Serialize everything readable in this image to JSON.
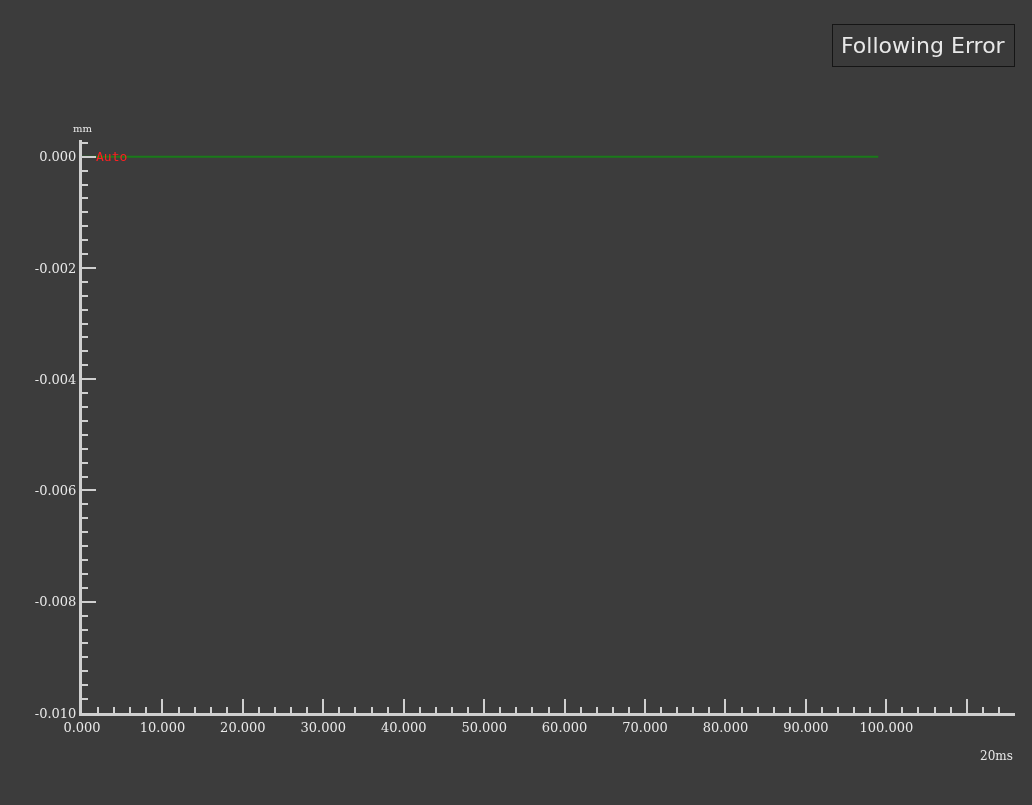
{
  "chart_data": {
    "type": "line",
    "title": "Following Error",
    "xlabel": "20ms",
    "ylabel": "mm",
    "annotations": [
      "Auto"
    ],
    "x": [
      0,
      99
    ],
    "series": [
      {
        "color": "#1a7a1a",
        "values": [
          0,
          0
        ]
      }
    ],
    "xlim": [
      0,
      116
    ],
    "ylim": [
      -0.01,
      0.0003
    ],
    "xticks": [
      {
        "value": 0,
        "label": "0.000"
      },
      {
        "value": 10,
        "label": "10.000"
      },
      {
        "value": 20,
        "label": "20.000"
      },
      {
        "value": 30,
        "label": "30.000"
      },
      {
        "value": 40,
        "label": "40.000"
      },
      {
        "value": 50,
        "label": "50.000"
      },
      {
        "value": 60,
        "label": "60.000"
      },
      {
        "value": 70,
        "label": "70.000"
      },
      {
        "value": 80,
        "label": "80.000"
      },
      {
        "value": 90,
        "label": "90.000"
      },
      {
        "value": 100,
        "label": "100.000"
      },
      {
        "value": 110,
        "label": null
      }
    ],
    "yticks": [
      {
        "value": 0,
        "label": "0.000"
      },
      {
        "value": -0.002,
        "label": "-0.002"
      },
      {
        "value": -0.004,
        "label": "-0.004"
      },
      {
        "value": -0.006,
        "label": "-0.006"
      },
      {
        "value": -0.008,
        "label": "-0.008"
      },
      {
        "value": -0.01,
        "label": "-0.010"
      }
    ],
    "grid": false,
    "marker": "none",
    "line_style": "solid"
  }
}
